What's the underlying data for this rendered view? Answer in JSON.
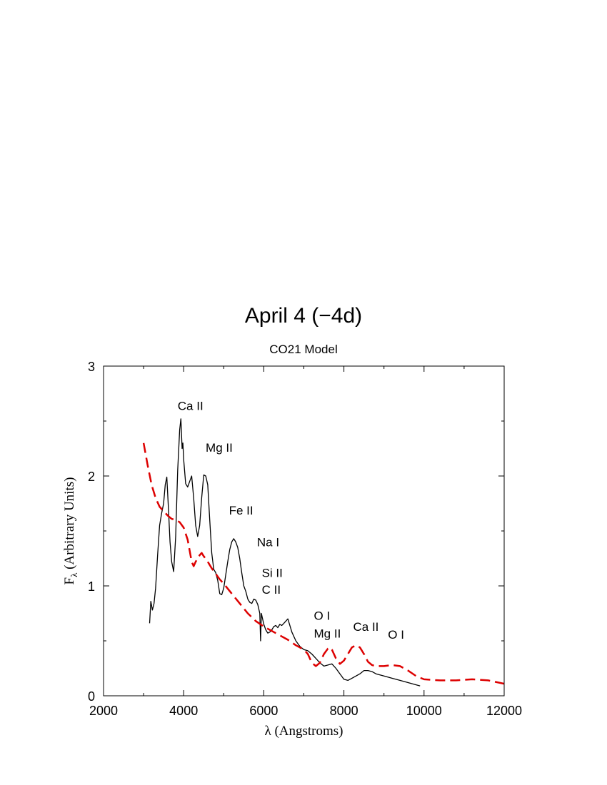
{
  "title": "April 4 (−4d)",
  "subtitle": "CO21 Model",
  "chart_data": {
    "type": "line",
    "xlabel": "λ (Angstroms)",
    "ylabel_main": "F",
    "ylabel_sub": "λ",
    "ylabel_rest": " (Arbitrary Units)",
    "xlim": [
      2000,
      12000
    ],
    "ylim": [
      0,
      3
    ],
    "xticks": [
      2000,
      4000,
      6000,
      8000,
      10000,
      12000
    ],
    "yticks": [
      0,
      1,
      2,
      3
    ],
    "grid": false,
    "series": [
      {
        "style": "solid",
        "color": "#000000",
        "points": [
          [
            3150,
            0.66
          ],
          [
            3180,
            0.86
          ],
          [
            3220,
            0.78
          ],
          [
            3260,
            0.84
          ],
          [
            3300,
            0.98
          ],
          [
            3350,
            1.28
          ],
          [
            3400,
            1.55
          ],
          [
            3450,
            1.66
          ],
          [
            3500,
            1.75
          ],
          [
            3540,
            1.92
          ],
          [
            3580,
            1.99
          ],
          [
            3620,
            1.7
          ],
          [
            3660,
            1.4
          ],
          [
            3700,
            1.22
          ],
          [
            3750,
            1.13
          ],
          [
            3800,
            1.45
          ],
          [
            3850,
            2.05
          ],
          [
            3900,
            2.42
          ],
          [
            3930,
            2.52
          ],
          [
            3960,
            2.25
          ],
          [
            3980,
            2.3
          ],
          [
            4000,
            2.15
          ],
          [
            4050,
            1.93
          ],
          [
            4100,
            1.9
          ],
          [
            4150,
            1.95
          ],
          [
            4200,
            2.0
          ],
          [
            4250,
            1.8
          ],
          [
            4300,
            1.55
          ],
          [
            4350,
            1.45
          ],
          [
            4400,
            1.55
          ],
          [
            4450,
            1.8
          ],
          [
            4500,
            2.01
          ],
          [
            4550,
            2.0
          ],
          [
            4600,
            1.92
          ],
          [
            4650,
            1.6
          ],
          [
            4700,
            1.3
          ],
          [
            4750,
            1.15
          ],
          [
            4800,
            1.12
          ],
          [
            4850,
            1.05
          ],
          [
            4900,
            0.93
          ],
          [
            4950,
            0.92
          ],
          [
            5000,
            0.98
          ],
          [
            5050,
            1.1
          ],
          [
            5100,
            1.22
          ],
          [
            5150,
            1.33
          ],
          [
            5200,
            1.4
          ],
          [
            5250,
            1.43
          ],
          [
            5300,
            1.4
          ],
          [
            5350,
            1.35
          ],
          [
            5400,
            1.25
          ],
          [
            5450,
            1.12
          ],
          [
            5500,
            1.0
          ],
          [
            5550,
            0.95
          ],
          [
            5600,
            0.88
          ],
          [
            5650,
            0.85
          ],
          [
            5700,
            0.84
          ],
          [
            5750,
            0.88
          ],
          [
            5800,
            0.87
          ],
          [
            5850,
            0.83
          ],
          [
            5900,
            0.75
          ],
          [
            5920,
            0.5
          ],
          [
            5940,
            0.75
          ],
          [
            6000,
            0.65
          ],
          [
            6050,
            0.6
          ],
          [
            6100,
            0.57
          ],
          [
            6150,
            0.58
          ],
          [
            6200,
            0.6
          ],
          [
            6250,
            0.63
          ],
          [
            6300,
            0.64
          ],
          [
            6350,
            0.62
          ],
          [
            6400,
            0.65
          ],
          [
            6450,
            0.64
          ],
          [
            6500,
            0.66
          ],
          [
            6550,
            0.68
          ],
          [
            6600,
            0.7
          ],
          [
            6650,
            0.64
          ],
          [
            6700,
            0.58
          ],
          [
            6800,
            0.5
          ],
          [
            6900,
            0.45
          ],
          [
            7000,
            0.42
          ],
          [
            7100,
            0.41
          ],
          [
            7200,
            0.38
          ],
          [
            7300,
            0.34
          ],
          [
            7400,
            0.3
          ],
          [
            7500,
            0.27
          ],
          [
            7600,
            0.28
          ],
          [
            7700,
            0.29
          ],
          [
            7800,
            0.25
          ],
          [
            7900,
            0.2
          ],
          [
            8000,
            0.15
          ],
          [
            8100,
            0.14
          ],
          [
            8200,
            0.16
          ],
          [
            8300,
            0.18
          ],
          [
            8400,
            0.2
          ],
          [
            8500,
            0.23
          ],
          [
            8600,
            0.23
          ],
          [
            8700,
            0.22
          ],
          [
            8800,
            0.2
          ],
          [
            8900,
            0.19
          ],
          [
            9000,
            0.18
          ],
          [
            9200,
            0.16
          ],
          [
            9400,
            0.14
          ],
          [
            9600,
            0.12
          ],
          [
            9800,
            0.1
          ],
          [
            9900,
            0.09
          ]
        ]
      },
      {
        "style": "dashed",
        "color": "#dd0000",
        "points": [
          [
            3000,
            2.3
          ],
          [
            3100,
            2.1
          ],
          [
            3200,
            1.92
          ],
          [
            3300,
            1.8
          ],
          [
            3400,
            1.72
          ],
          [
            3500,
            1.68
          ],
          [
            3600,
            1.64
          ],
          [
            3700,
            1.61
          ],
          [
            3800,
            1.6
          ],
          [
            3900,
            1.58
          ],
          [
            4000,
            1.53
          ],
          [
            4100,
            1.42
          ],
          [
            4200,
            1.22
          ],
          [
            4250,
            1.18
          ],
          [
            4300,
            1.22
          ],
          [
            4400,
            1.28
          ],
          [
            4450,
            1.3
          ],
          [
            4500,
            1.27
          ],
          [
            4600,
            1.22
          ],
          [
            4700,
            1.16
          ],
          [
            4800,
            1.11
          ],
          [
            4900,
            1.06
          ],
          [
            5000,
            1.02
          ],
          [
            5200,
            0.93
          ],
          [
            5400,
            0.84
          ],
          [
            5600,
            0.75
          ],
          [
            5800,
            0.68
          ],
          [
            6000,
            0.63
          ],
          [
            6200,
            0.59
          ],
          [
            6400,
            0.55
          ],
          [
            6600,
            0.51
          ],
          [
            6800,
            0.46
          ],
          [
            7000,
            0.42
          ],
          [
            7100,
            0.38
          ],
          [
            7200,
            0.3
          ],
          [
            7300,
            0.27
          ],
          [
            7400,
            0.3
          ],
          [
            7500,
            0.38
          ],
          [
            7600,
            0.43
          ],
          [
            7650,
            0.44
          ],
          [
            7700,
            0.42
          ],
          [
            7800,
            0.34
          ],
          [
            7900,
            0.29
          ],
          [
            8000,
            0.32
          ],
          [
            8100,
            0.38
          ],
          [
            8200,
            0.44
          ],
          [
            8300,
            0.46
          ],
          [
            8400,
            0.44
          ],
          [
            8500,
            0.38
          ],
          [
            8600,
            0.31
          ],
          [
            8700,
            0.28
          ],
          [
            8800,
            0.27
          ],
          [
            9000,
            0.27
          ],
          [
            9200,
            0.28
          ],
          [
            9400,
            0.27
          ],
          [
            9600,
            0.23
          ],
          [
            9800,
            0.18
          ],
          [
            10000,
            0.15
          ],
          [
            10400,
            0.14
          ],
          [
            10800,
            0.14
          ],
          [
            11200,
            0.15
          ],
          [
            11600,
            0.14
          ],
          [
            12000,
            0.11
          ]
        ]
      }
    ],
    "annotations": [
      {
        "text": "Ca II",
        "x": 3850,
        "y": 2.6
      },
      {
        "text": "Mg II",
        "x": 4550,
        "y": 2.22
      },
      {
        "text": "Fe II",
        "x": 5130,
        "y": 1.65
      },
      {
        "text": "Na I",
        "x": 5830,
        "y": 1.36
      },
      {
        "text": "Si II",
        "x": 5950,
        "y": 1.08
      },
      {
        "text": "C II",
        "x": 5950,
        "y": 0.93
      },
      {
        "text": "O I",
        "x": 7250,
        "y": 0.69
      },
      {
        "text": "Mg II",
        "x": 7250,
        "y": 0.53
      },
      {
        "text": "Ca II",
        "x": 8230,
        "y": 0.59
      },
      {
        "text": "O I",
        "x": 9100,
        "y": 0.52
      }
    ]
  }
}
